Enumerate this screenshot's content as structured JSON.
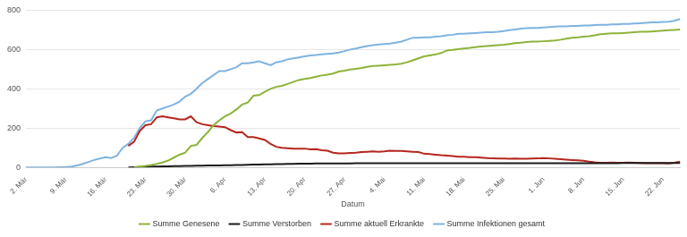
{
  "chart_data": {
    "type": "line",
    "x_label": "Datum",
    "categories": [
      "2. Mär",
      null,
      null,
      null,
      null,
      null,
      null,
      "9. Mär",
      null,
      null,
      null,
      null,
      null,
      null,
      "16. Mär",
      null,
      null,
      null,
      null,
      null,
      null,
      "23. Mär",
      null,
      null,
      null,
      null,
      null,
      null,
      "30. Mär",
      null,
      null,
      null,
      null,
      null,
      null,
      "6. Apr",
      null,
      null,
      null,
      null,
      null,
      null,
      "13. Apr",
      null,
      null,
      null,
      null,
      null,
      null,
      "20. Apr",
      null,
      null,
      null,
      null,
      null,
      null,
      "27. Apr",
      null,
      null,
      null,
      null,
      null,
      null,
      "4. Mai",
      null,
      null,
      null,
      null,
      null,
      null,
      "11. Mai",
      null,
      null,
      null,
      null,
      null,
      null,
      "18. Mai",
      null,
      null,
      null,
      null,
      null,
      null,
      "25. Mai",
      null,
      null,
      null,
      null,
      null,
      null,
      "1. Jun",
      null,
      null,
      null,
      null,
      null,
      null,
      "8. Jun",
      null,
      null,
      null,
      null,
      null,
      null,
      "15. Jun",
      null,
      null,
      null,
      null,
      null,
      null,
      "22. Jun",
      null,
      null,
      null
    ],
    "series": [
      {
        "name": "Summe Genesene",
        "color": "#8db33a",
        "values": [
          null,
          null,
          null,
          null,
          null,
          null,
          null,
          null,
          null,
          null,
          null,
          null,
          null,
          null,
          null,
          null,
          null,
          null,
          null,
          0,
          5,
          8,
          12,
          18,
          25,
          35,
          50,
          65,
          75,
          110,
          115,
          150,
          180,
          215,
          240,
          260,
          275,
          295,
          320,
          330,
          365,
          368,
          385,
          400,
          410,
          415,
          425,
          435,
          445,
          450,
          455,
          462,
          468,
          472,
          478,
          488,
          492,
          498,
          502,
          506,
          512,
          516,
          518,
          520,
          522,
          524,
          528,
          535,
          545,
          555,
          565,
          570,
          575,
          582,
          595,
          598,
          602,
          605,
          608,
          612,
          615,
          618,
          620,
          622,
          624,
          628,
          632,
          635,
          638,
          640,
          640,
          642,
          644,
          646,
          650,
          655,
          660,
          662,
          665,
          668,
          672,
          678,
          680,
          682,
          682,
          684,
          686,
          688,
          690,
          690,
          692,
          694,
          696,
          698,
          700,
          702
        ]
      },
      {
        "name": "Summe Verstorben",
        "color": "#1a1a1a",
        "values": [
          null,
          null,
          null,
          null,
          null,
          null,
          null,
          null,
          null,
          null,
          null,
          null,
          null,
          null,
          null,
          null,
          null,
          null,
          0,
          1,
          2,
          3,
          4,
          5,
          6,
          6,
          7,
          7,
          8,
          8,
          9,
          9,
          10,
          10,
          10,
          11,
          11,
          12,
          13,
          14,
          15,
          15,
          16,
          16,
          17,
          17,
          18,
          18,
          19,
          19,
          19,
          20,
          20,
          20,
          20,
          20,
          20,
          20,
          21,
          21,
          21,
          21,
          21,
          21,
          21,
          21,
          21,
          21,
          21,
          21,
          22,
          22,
          22,
          22,
          22,
          22,
          22,
          22,
          22,
          22,
          22,
          22,
          22,
          22,
          22,
          22,
          22,
          22,
          22,
          22,
          22,
          22,
          22,
          22,
          22,
          22,
          22,
          22,
          22,
          22,
          22,
          22,
          22,
          22,
          22,
          23,
          23,
          23,
          23,
          23,
          23,
          23,
          23,
          23,
          23,
          23
        ]
      },
      {
        "name": "Summe aktuell Erkrankte",
        "color": "#b5261e",
        "values": [
          null,
          null,
          null,
          null,
          null,
          null,
          null,
          null,
          null,
          null,
          null,
          null,
          null,
          null,
          null,
          null,
          null,
          null,
          110,
          130,
          185,
          215,
          220,
          255,
          260,
          255,
          250,
          245,
          245,
          260,
          230,
          220,
          215,
          210,
          208,
          205,
          190,
          178,
          180,
          155,
          155,
          148,
          140,
          120,
          105,
          100,
          98,
          95,
          95,
          96,
          92,
          93,
          88,
          85,
          75,
          72,
          72,
          74,
          75,
          78,
          80,
          82,
          80,
          82,
          85,
          84,
          84,
          82,
          80,
          78,
          70,
          68,
          65,
          62,
          60,
          58,
          55,
          55,
          52,
          52,
          50,
          48,
          46,
          45,
          45,
          44,
          45,
          44,
          44,
          45,
          46,
          48,
          46,
          44,
          42,
          40,
          38,
          36,
          34,
          30,
          26,
          24,
          24,
          25,
          24,
          24,
          25,
          24,
          23,
          22,
          22,
          22,
          22,
          20,
          24,
          30
        ]
      },
      {
        "name": "Summe Infektionen gesamt",
        "color": "#7fb3e0",
        "values": [
          0,
          0,
          0,
          0,
          0,
          0,
          1,
          2,
          5,
          10,
          18,
          28,
          38,
          45,
          52,
          48,
          60,
          100,
          120,
          150,
          200,
          235,
          240,
          290,
          300,
          310,
          320,
          335,
          360,
          375,
          400,
          430,
          450,
          470,
          490,
          490,
          500,
          510,
          530,
          530,
          535,
          540,
          530,
          520,
          535,
          540,
          550,
          555,
          560,
          565,
          570,
          572,
          575,
          578,
          580,
          585,
          592,
          600,
          605,
          612,
          618,
          622,
          625,
          628,
          630,
          635,
          640,
          650,
          660,
          660,
          662,
          662,
          665,
          668,
          672,
          675,
          680,
          680,
          682,
          684,
          686,
          688,
          688,
          690,
          694,
          698,
          702,
          706,
          708,
          710,
          710,
          712,
          714,
          716,
          718,
          718,
          720,
          720,
          722,
          722,
          724,
          726,
          726,
          728,
          728,
          730,
          730,
          732,
          734,
          736,
          738,
          738,
          740,
          742,
          746,
          755
        ]
      }
    ],
    "ylim": [
      0,
      800
    ],
    "yticks": [
      0,
      200,
      400,
      600,
      800
    ],
    "grid": true,
    "legend": "bottom"
  }
}
